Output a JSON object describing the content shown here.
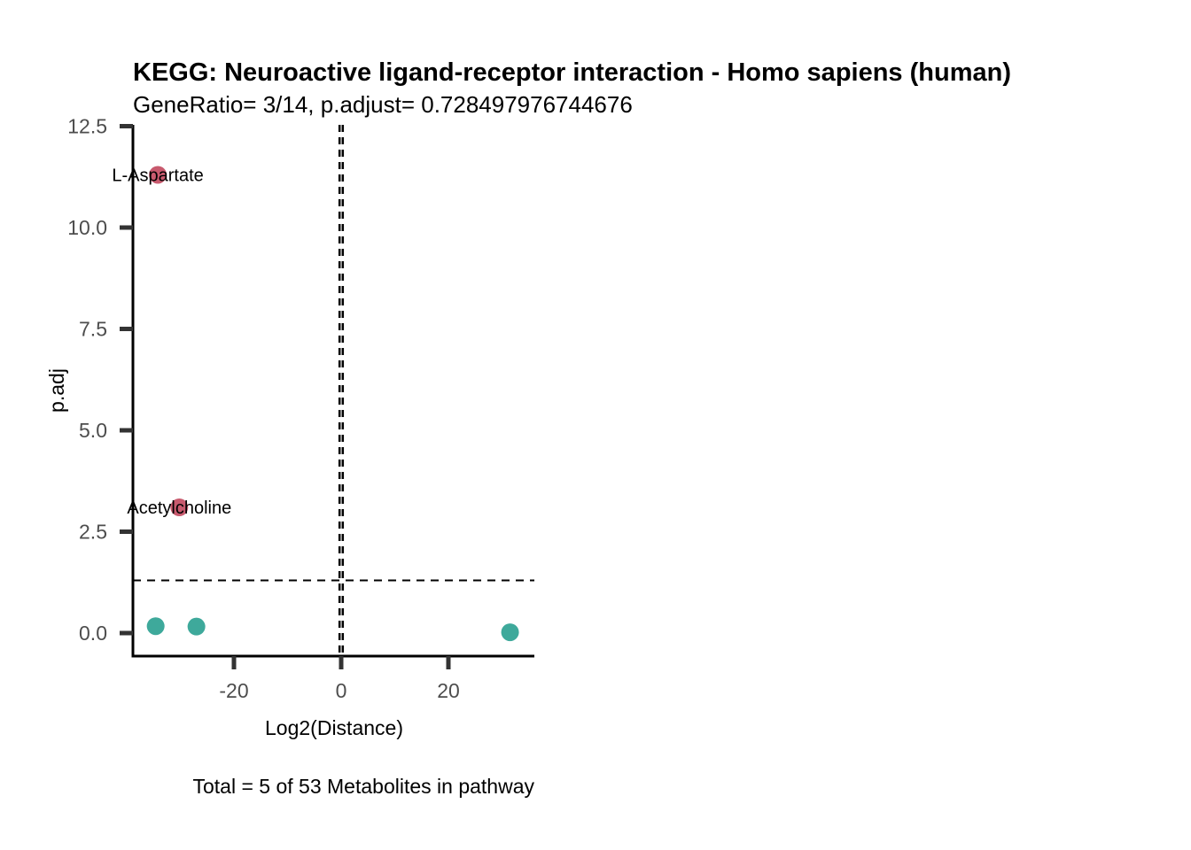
{
  "chart_data": {
    "type": "scatter",
    "title": "KEGG: Neuroactive ligand-receptor interaction - Homo sapiens (human)",
    "subtitle": "GeneRatio= 3/14, p.adjust= 0.728497976744676",
    "xlabel": "Log2(Distance)",
    "ylabel": "p.adj",
    "caption": "Total = 5 of 53 Metabolites in pathway",
    "xlim": [
      -38,
      36
    ],
    "ylim": [
      -0.58,
      12.5
    ],
    "x_ticks": [
      {
        "value": -20,
        "label": "-20"
      },
      {
        "value": 0,
        "label": "0"
      },
      {
        "value": 20,
        "label": "20"
      }
    ],
    "y_ticks": [
      {
        "value": 0,
        "label": "0.0"
      },
      {
        "value": 2.5,
        "label": "2.5"
      },
      {
        "value": 5,
        "label": "5.0"
      },
      {
        "value": 7.5,
        "label": "7.5"
      },
      {
        "value": 10,
        "label": "10.0"
      },
      {
        "value": 12.5,
        "label": "12.5"
      }
    ],
    "reference_lines": {
      "vertical_x": [
        -0.3,
        0.3
      ],
      "horizontal_y": 1.3
    },
    "points": [
      {
        "x": -34.2,
        "y": 11.3,
        "color": "#c85a6e",
        "label": "L-Aspartate"
      },
      {
        "x": -30.2,
        "y": 3.1,
        "color": "#c85a6e",
        "label": "Acetylcholine"
      },
      {
        "x": -34.6,
        "y": 0.17,
        "color": "#3ea99b",
        "label": ""
      },
      {
        "x": -27.0,
        "y": 0.16,
        "color": "#3ea99b",
        "label": ""
      },
      {
        "x": 31.5,
        "y": 0.02,
        "color": "#3ea99b",
        "label": ""
      }
    ],
    "grid": false,
    "legend": "none"
  }
}
